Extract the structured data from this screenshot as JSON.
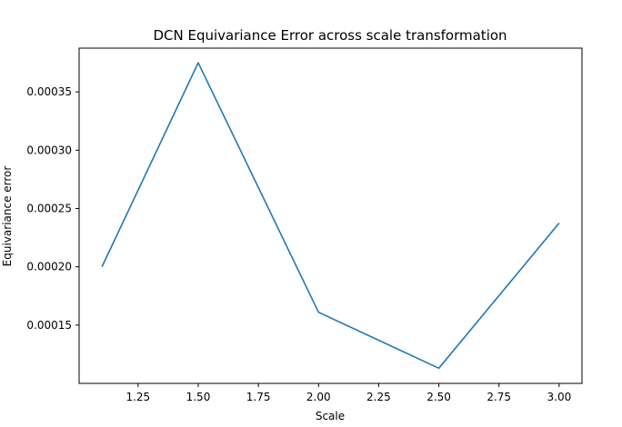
{
  "chart_data": {
    "type": "line",
    "title": "DCN Equivariance Error across scale transformation",
    "xlabel": "Scale",
    "ylabel": "Equivariance error",
    "x": [
      1.1,
      1.5,
      2.0,
      2.5,
      3.0
    ],
    "series": [
      {
        "values": [
          0.0002,
          0.000375,
          0.000161,
          0.000113,
          0.0002375
        ],
        "color": "#1f77b4"
      }
    ],
    "xlim": [
      1.005,
      3.095
    ],
    "ylim": [
      0.0001,
      0.0003875
    ],
    "xticks": [
      1.25,
      1.5,
      1.75,
      2.0,
      2.25,
      2.5,
      2.75,
      3.0
    ],
    "xtick_labels": [
      "1.25",
      "1.50",
      "1.75",
      "2.00",
      "2.25",
      "2.50",
      "2.75",
      "3.00"
    ],
    "yticks": [
      0.00015,
      0.0002,
      0.00025,
      0.0003,
      0.00035
    ],
    "ytick_labels": [
      "0.00015",
      "0.00020",
      "0.00025",
      "0.00030",
      "0.00035"
    ],
    "grid": false,
    "legend": false
  }
}
